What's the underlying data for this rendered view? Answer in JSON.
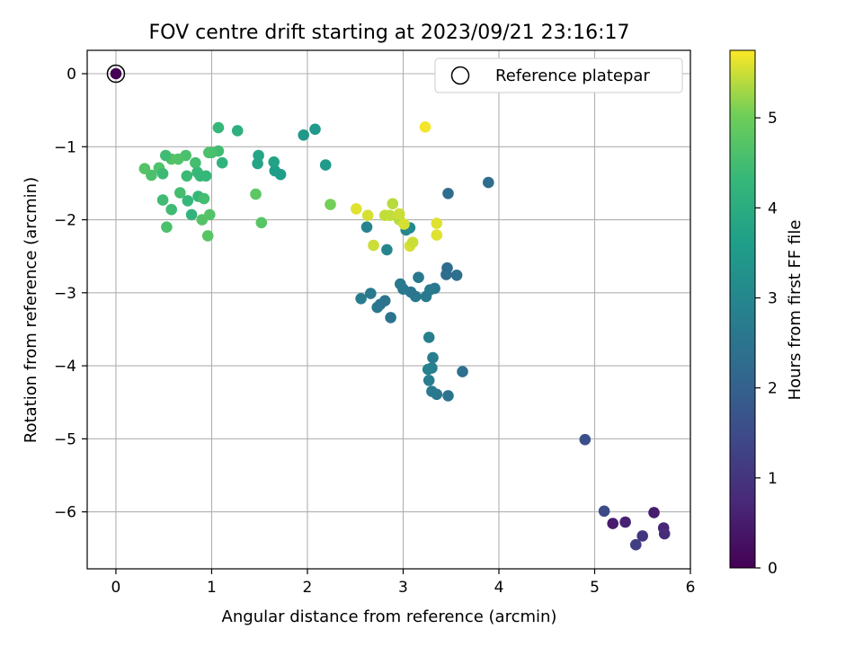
{
  "chart_data": {
    "type": "scatter",
    "title": "FOV centre drift starting at 2023/09/21 23:16:17",
    "xlabel": "Angular distance from reference (arcmin)",
    "ylabel": "Rotation from reference (arcmin)",
    "xlim": [
      -0.3,
      6.0
    ],
    "ylim": [
      -6.78,
      0.32
    ],
    "xticks": [
      0,
      1,
      2,
      3,
      4,
      5,
      6
    ],
    "yticks": [
      0,
      -1,
      -2,
      -3,
      -4,
      -5,
      -6
    ],
    "grid": true,
    "legend": {
      "position": "top-right",
      "entries": [
        {
          "label": "Reference platepar",
          "marker": "open-circle"
        }
      ]
    },
    "colorbar": {
      "label": "Hours from first FF file",
      "colormap": "viridis",
      "range": [
        0,
        5.75
      ],
      "ticks": [
        0,
        1,
        2,
        3,
        4,
        5
      ]
    },
    "reference_point": {
      "x": 0,
      "y": 0,
      "hours": 0
    },
    "points": [
      {
        "x": 5.5,
        "y": -6.33,
        "hours": 1.0
      },
      {
        "x": 5.62,
        "y": -6.01,
        "hours": 0.5
      },
      {
        "x": 5.72,
        "y": -6.22,
        "hours": 0.7
      },
      {
        "x": 5.73,
        "y": -6.3,
        "hours": 0.8
      },
      {
        "x": 5.43,
        "y": -6.45,
        "hours": 1.2
      },
      {
        "x": 5.32,
        "y": -6.14,
        "hours": 0.6
      },
      {
        "x": 5.19,
        "y": -6.16,
        "hours": 0.5
      },
      {
        "x": 5.1,
        "y": -5.99,
        "hours": 1.5
      },
      {
        "x": 4.9,
        "y": -5.01,
        "hours": 1.6
      },
      {
        "x": 3.89,
        "y": -1.49,
        "hours": 2.3
      },
      {
        "x": 3.47,
        "y": -1.64,
        "hours": 2.3
      },
      {
        "x": 3.46,
        "y": -2.66,
        "hours": 2.3
      },
      {
        "x": 3.45,
        "y": -2.75,
        "hours": 2.3
      },
      {
        "x": 3.56,
        "y": -2.76,
        "hours": 2.35
      },
      {
        "x": 3.62,
        "y": -4.08,
        "hours": 2.4
      },
      {
        "x": 3.47,
        "y": -4.41,
        "hours": 2.5
      },
      {
        "x": 3.35,
        "y": -4.39,
        "hours": 2.6
      },
      {
        "x": 3.3,
        "y": -4.35,
        "hours": 2.65
      },
      {
        "x": 3.27,
        "y": -4.2,
        "hours": 2.75
      },
      {
        "x": 3.31,
        "y": -3.89,
        "hours": 2.75
      },
      {
        "x": 3.3,
        "y": -4.03,
        "hours": 2.8
      },
      {
        "x": 3.26,
        "y": -4.05,
        "hours": 2.9
      },
      {
        "x": 3.27,
        "y": -3.61,
        "hours": 2.8
      },
      {
        "x": 3.16,
        "y": -2.79,
        "hours": 2.6
      },
      {
        "x": 3.33,
        "y": -2.94,
        "hours": 2.6
      },
      {
        "x": 3.28,
        "y": -2.96,
        "hours": 2.65
      },
      {
        "x": 3.24,
        "y": -3.05,
        "hours": 2.65
      },
      {
        "x": 3.13,
        "y": -3.05,
        "hours": 2.6
      },
      {
        "x": 3.08,
        "y": -2.99,
        "hours": 2.55
      },
      {
        "x": 3.0,
        "y": -2.95,
        "hours": 2.6
      },
      {
        "x": 2.97,
        "y": -2.88,
        "hours": 2.6
      },
      {
        "x": 2.87,
        "y": -3.34,
        "hours": 2.5
      },
      {
        "x": 2.81,
        "y": -3.11,
        "hours": 2.5
      },
      {
        "x": 2.76,
        "y": -3.16,
        "hours": 2.5
      },
      {
        "x": 2.73,
        "y": -3.2,
        "hours": 2.55
      },
      {
        "x": 2.66,
        "y": -3.01,
        "hours": 2.65
      },
      {
        "x": 2.56,
        "y": -3.08,
        "hours": 2.7
      },
      {
        "x": 2.83,
        "y": -2.41,
        "hours": 2.95
      },
      {
        "x": 2.62,
        "y": -2.1,
        "hours": 2.9
      },
      {
        "x": 3.03,
        "y": -2.14,
        "hours": 3.0
      },
      {
        "x": 3.07,
        "y": -2.11,
        "hours": 3.05
      },
      {
        "x": 2.96,
        "y": -2.0,
        "hours": 5.4
      },
      {
        "x": 2.86,
        "y": -1.94,
        "hours": 5.45
      },
      {
        "x": 2.81,
        "y": -1.94,
        "hours": 5.45
      },
      {
        "x": 2.89,
        "y": -1.78,
        "hours": 5.4
      },
      {
        "x": 2.96,
        "y": -1.92,
        "hours": 5.5
      },
      {
        "x": 3.01,
        "y": -2.06,
        "hours": 5.55
      },
      {
        "x": 3.07,
        "y": -2.36,
        "hours": 5.55
      },
      {
        "x": 3.1,
        "y": -2.31,
        "hours": 5.5
      },
      {
        "x": 2.69,
        "y": -2.35,
        "hours": 5.5
      },
      {
        "x": 2.63,
        "y": -1.94,
        "hours": 5.55
      },
      {
        "x": 2.51,
        "y": -1.85,
        "hours": 5.6
      },
      {
        "x": 3.35,
        "y": -2.05,
        "hours": 5.6
      },
      {
        "x": 3.35,
        "y": -2.21,
        "hours": 5.6
      },
      {
        "x": 3.23,
        "y": -0.73,
        "hours": 5.7
      },
      {
        "x": 2.24,
        "y": -1.79,
        "hours": 5.05
      },
      {
        "x": 2.08,
        "y": -0.76,
        "hours": 3.5
      },
      {
        "x": 1.96,
        "y": -0.84,
        "hours": 3.45
      },
      {
        "x": 2.19,
        "y": -1.25,
        "hours": 3.5
      },
      {
        "x": 1.72,
        "y": -1.38,
        "hours": 3.6
      },
      {
        "x": 1.66,
        "y": -1.33,
        "hours": 3.6
      },
      {
        "x": 1.65,
        "y": -1.21,
        "hours": 3.7
      },
      {
        "x": 1.49,
        "y": -1.12,
        "hours": 3.8
      },
      {
        "x": 1.48,
        "y": -1.23,
        "hours": 3.8
      },
      {
        "x": 1.27,
        "y": -0.78,
        "hours": 4.1
      },
      {
        "x": 1.07,
        "y": -0.74,
        "hours": 4.3
      },
      {
        "x": 1.11,
        "y": -1.22,
        "hours": 4.2
      },
      {
        "x": 1.07,
        "y": -1.06,
        "hours": 4.45
      },
      {
        "x": 1.0,
        "y": -1.08,
        "hours": 4.55
      },
      {
        "x": 0.97,
        "y": -1.08,
        "hours": 4.6
      },
      {
        "x": 0.83,
        "y": -1.22,
        "hours": 4.5
      },
      {
        "x": 0.73,
        "y": -1.12,
        "hours": 4.6
      },
      {
        "x": 0.65,
        "y": -1.17,
        "hours": 4.65
      },
      {
        "x": 0.58,
        "y": -1.17,
        "hours": 4.7
      },
      {
        "x": 0.52,
        "y": -1.12,
        "hours": 4.45
      },
      {
        "x": 0.45,
        "y": -1.29,
        "hours": 4.65
      },
      {
        "x": 0.37,
        "y": -1.39,
        "hours": 4.6
      },
      {
        "x": 0.3,
        "y": -1.3,
        "hours": 4.7
      },
      {
        "x": 0.49,
        "y": -1.37,
        "hours": 4.4
      },
      {
        "x": 0.74,
        "y": -1.4,
        "hours": 4.4
      },
      {
        "x": 0.85,
        "y": -1.35,
        "hours": 4.35
      },
      {
        "x": 0.88,
        "y": -1.4,
        "hours": 4.3
      },
      {
        "x": 0.94,
        "y": -1.4,
        "hours": 4.3
      },
      {
        "x": 0.67,
        "y": -1.63,
        "hours": 4.5
      },
      {
        "x": 0.49,
        "y": -1.73,
        "hours": 4.45
      },
      {
        "x": 0.58,
        "y": -1.86,
        "hours": 4.45
      },
      {
        "x": 0.75,
        "y": -1.74,
        "hours": 4.3
      },
      {
        "x": 0.86,
        "y": -1.68,
        "hours": 4.3
      },
      {
        "x": 0.92,
        "y": -1.71,
        "hours": 4.5
      },
      {
        "x": 0.79,
        "y": -1.93,
        "hours": 4.2
      },
      {
        "x": 0.9,
        "y": -2.0,
        "hours": 4.7
      },
      {
        "x": 0.98,
        "y": -1.93,
        "hours": 4.7
      },
      {
        "x": 0.96,
        "y": -2.22,
        "hours": 4.75
      },
      {
        "x": 0.53,
        "y": -2.1,
        "hours": 4.6
      },
      {
        "x": 1.46,
        "y": -1.65,
        "hours": 4.8
      },
      {
        "x": 1.52,
        "y": -2.04,
        "hours": 4.75
      }
    ]
  }
}
